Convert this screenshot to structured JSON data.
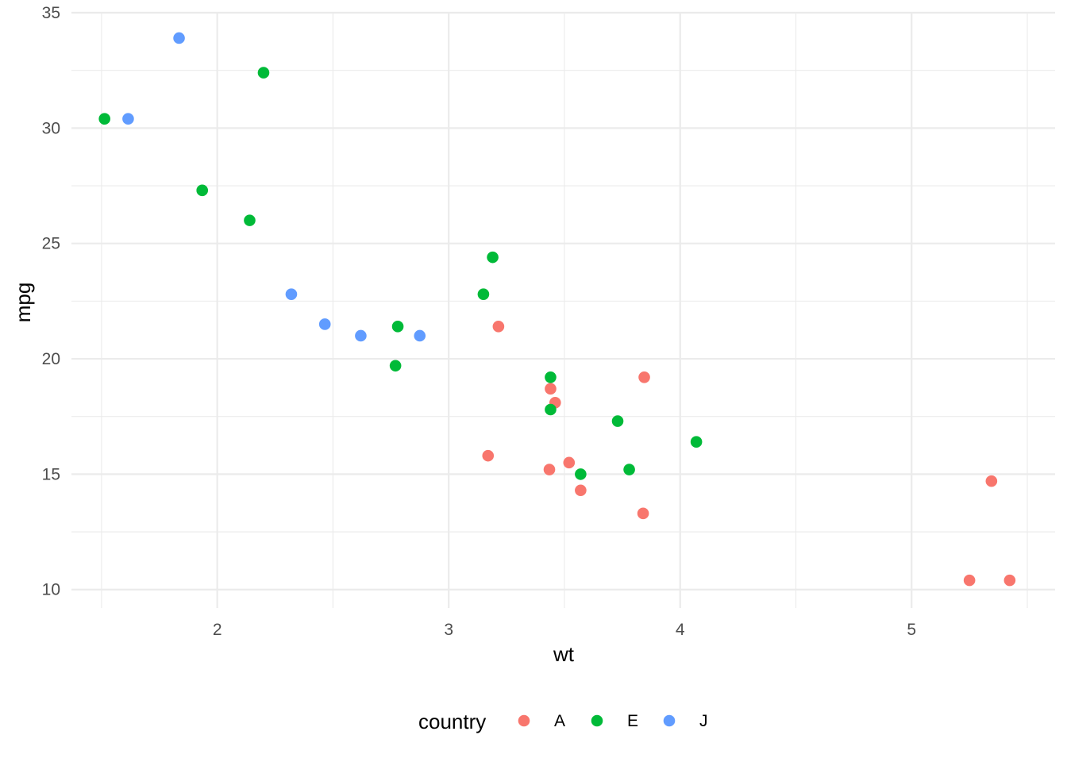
{
  "chart_data": {
    "type": "scatter",
    "xlabel": "wt",
    "ylabel": "mpg",
    "xlim": [
      1.37,
      5.62
    ],
    "ylim": [
      9.2,
      35
    ],
    "x_ticks": [
      2,
      3,
      4,
      5
    ],
    "x_tick_labels": [
      "2",
      "3",
      "4",
      "5"
    ],
    "y_ticks": [
      10,
      15,
      20,
      25,
      30,
      35
    ],
    "y_tick_labels": [
      "10",
      "15",
      "20",
      "25",
      "30",
      "35"
    ],
    "x_minor": [
      1.5,
      2.5,
      3.5,
      4.5,
      5.5
    ],
    "y_minor": [
      12.5,
      17.5,
      22.5,
      27.5,
      32.5
    ],
    "grid": true,
    "legend": {
      "title": "country",
      "position": "bottom",
      "entries": [
        "A",
        "E",
        "J"
      ]
    },
    "colors": {
      "A": "#F8766D",
      "E": "#00BA38",
      "J": "#619CFF"
    },
    "series": [
      {
        "name": "A",
        "points": [
          [
            3.215,
            21.4
          ],
          [
            3.44,
            18.7
          ],
          [
            3.46,
            18.1
          ],
          [
            3.57,
            14.3
          ],
          [
            3.845,
            19.2
          ],
          [
            3.17,
            15.8
          ],
          [
            3.435,
            15.2
          ],
          [
            3.52,
            15.5
          ],
          [
            3.84,
            13.3
          ],
          [
            5.25,
            10.4
          ],
          [
            5.424,
            10.4
          ],
          [
            5.345,
            14.7
          ]
        ]
      },
      {
        "name": "E",
        "points": [
          [
            3.19,
            24.4
          ],
          [
            3.15,
            22.8
          ],
          [
            3.44,
            19.2
          ],
          [
            3.44,
            17.8
          ],
          [
            4.07,
            16.4
          ],
          [
            3.73,
            17.3
          ],
          [
            3.78,
            15.2
          ],
          [
            2.2,
            32.4
          ],
          [
            1.935,
            27.3
          ],
          [
            2.14,
            26.0
          ],
          [
            1.513,
            30.4
          ],
          [
            3.57,
            15.0
          ],
          [
            2.78,
            21.4
          ],
          [
            2.77,
            19.7
          ]
        ]
      },
      {
        "name": "J",
        "points": [
          [
            2.62,
            21.0
          ],
          [
            2.875,
            21.0
          ],
          [
            2.32,
            22.8
          ],
          [
            1.615,
            30.4
          ],
          [
            1.835,
            33.9
          ],
          [
            2.465,
            21.5
          ]
        ]
      }
    ]
  }
}
